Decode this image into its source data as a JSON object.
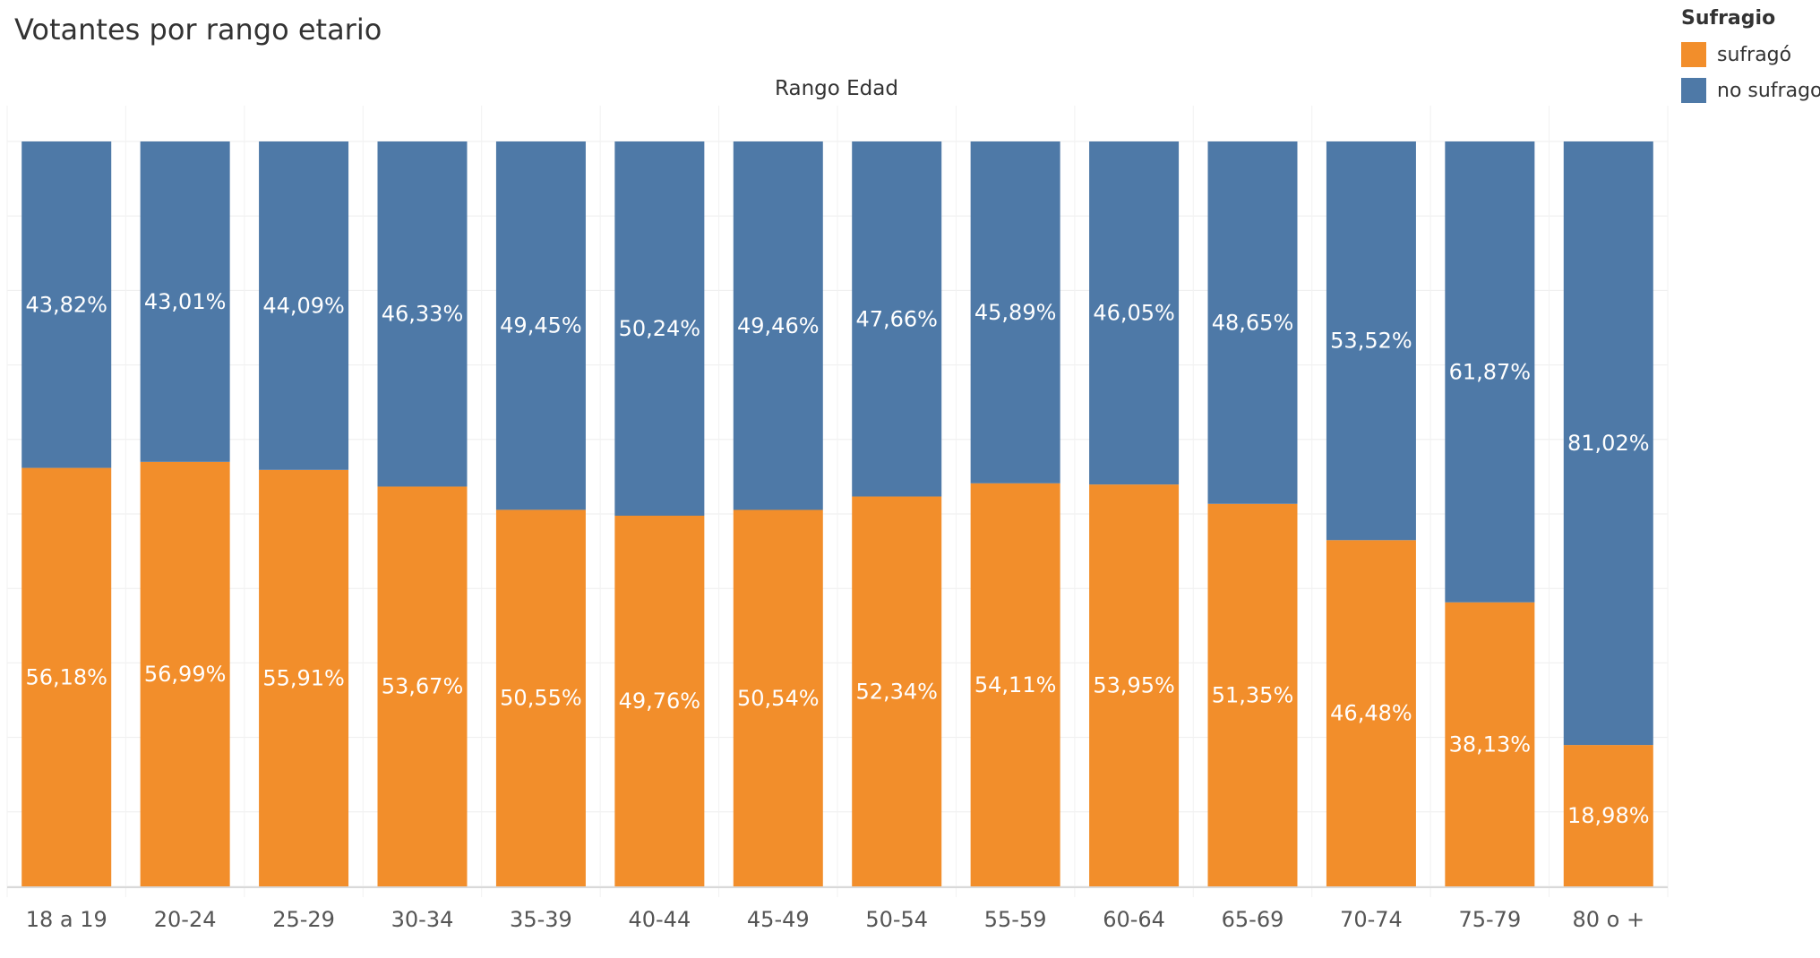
{
  "title": "Votantes por rango etario",
  "legend": {
    "title": "Sufragio",
    "items": [
      {
        "label": "sufragó",
        "color": "#F28E2B"
      },
      {
        "label": "no sufrago",
        "color": "#4E79A7"
      }
    ]
  },
  "chart_data": {
    "type": "bar",
    "stacked": true,
    "normalized": true,
    "title": "Votantes por rango etario",
    "column_header": "Rango Edad",
    "categories": [
      "18 a 19",
      "20-24",
      "25-29",
      "30-34",
      "35-39",
      "40-44",
      "45-49",
      "50-54",
      "55-59",
      "60-64",
      "65-69",
      "70-74",
      "75-79",
      "80 o +"
    ],
    "series": [
      {
        "name": "sufragó",
        "color": "#F28E2B",
        "values": [
          56.18,
          56.99,
          55.91,
          53.67,
          50.55,
          49.76,
          50.54,
          52.34,
          54.11,
          53.95,
          51.35,
          46.48,
          38.13,
          18.98
        ],
        "labels": [
          "56,18%",
          "56,99%",
          "55,91%",
          "53,67%",
          "50,55%",
          "49,76%",
          "50,54%",
          "52,34%",
          "54,11%",
          "53,95%",
          "51,35%",
          "46,48%",
          "38,13%",
          "18,98%"
        ]
      },
      {
        "name": "no sufrago",
        "color": "#4E79A7",
        "values": [
          43.82,
          43.01,
          44.09,
          46.33,
          49.45,
          50.24,
          49.46,
          47.66,
          45.89,
          46.05,
          48.65,
          53.52,
          61.87,
          81.02
        ],
        "labels": [
          "43,82%",
          "43,01%",
          "44,09%",
          "46,33%",
          "49,45%",
          "50,24%",
          "49,46%",
          "47,66%",
          "45,89%",
          "46,05%",
          "48,65%",
          "53,52%",
          "61,87%",
          "81,02%"
        ]
      }
    ],
    "ylim": [
      0,
      100
    ],
    "grid": true,
    "legend_position": "top-right"
  }
}
